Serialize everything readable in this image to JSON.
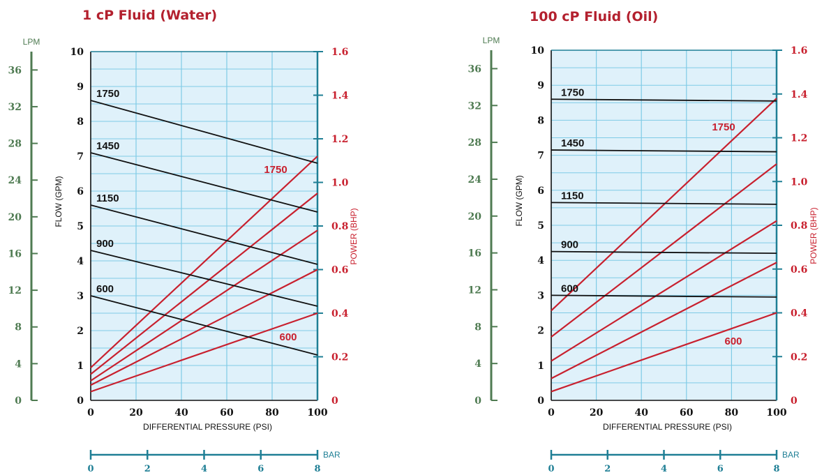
{
  "colors": {
    "flow_line": "#111111",
    "power_line": "#c8202e",
    "lpm_axis": "#4f7b52",
    "bar_axis": "#1f7f95",
    "plot_bg": "#dff1fa",
    "grid": "#7fcbe6",
    "title": "#b3202e"
  },
  "chart_data": [
    {
      "type": "line",
      "title": "1 cP Fluid (Water)",
      "xlabel": "DIFFERENTIAL PRESSURE  (PSI)",
      "ylabel": "FLOW  (GPM)",
      "y2label": "POWER  (BHP)",
      "lpm_label": "LPM",
      "bar_label": "BAR",
      "xlim": [
        0,
        100
      ],
      "ylim": [
        0,
        10
      ],
      "y2lim": [
        0,
        1.6
      ],
      "lpm_lim": [
        0,
        38
      ],
      "bar_lim": [
        0,
        8
      ],
      "x_ticks": [
        "0",
        "20",
        "40",
        "60",
        "80",
        "100"
      ],
      "y_ticks": [
        "0",
        "1",
        "2",
        "3",
        "4",
        "5",
        "6",
        "7",
        "8",
        "9",
        "10"
      ],
      "y2_ticks": [
        "0",
        "0.2",
        "0.4",
        "0.6",
        "0.8",
        "1.0",
        "1.2",
        "1.4",
        "1.6"
      ],
      "lpm_ticks": [
        "0",
        "4",
        "8",
        "12",
        "16",
        "20",
        "24",
        "28",
        "32",
        "36"
      ],
      "bar_ticks": [
        "0",
        "2",
        "4",
        "6",
        "8"
      ],
      "flow_series": [
        {
          "name": "1750",
          "x": [
            0,
            100
          ],
          "y": [
            8.6,
            6.8
          ]
        },
        {
          "name": "1450",
          "x": [
            0,
            100
          ],
          "y": [
            7.1,
            5.4
          ]
        },
        {
          "name": "1150",
          "x": [
            0,
            100
          ],
          "y": [
            5.6,
            3.9
          ]
        },
        {
          "name": "900",
          "x": [
            0,
            100
          ],
          "y": [
            4.3,
            2.7
          ]
        },
        {
          "name": "600",
          "x": [
            0,
            100
          ],
          "y": [
            3.0,
            1.3
          ]
        }
      ],
      "power_series": [
        {
          "rpm": "1750",
          "x": [
            0,
            100
          ],
          "y": [
            0.15,
            1.12
          ]
        },
        {
          "rpm": "1450",
          "x": [
            0,
            100
          ],
          "y": [
            0.12,
            0.95
          ]
        },
        {
          "rpm": "1150",
          "x": [
            0,
            100
          ],
          "y": [
            0.09,
            0.78
          ]
        },
        {
          "rpm": "900",
          "x": [
            0,
            100
          ],
          "y": [
            0.07,
            0.6
          ]
        },
        {
          "rpm": "600",
          "x": [
            0,
            100
          ],
          "y": [
            0.04,
            0.4
          ]
        }
      ],
      "power_labels": [
        "1750",
        "600"
      ]
    },
    {
      "type": "line",
      "title": "100 cP Fluid (Oil)",
      "xlabel": "DIFFERENTIAL PRESSURE  (PSI)",
      "ylabel": "FLOW  (GPM)",
      "y2label": "POWER  (BHP)",
      "lpm_label": "LPM",
      "bar_label": "BAR",
      "xlim": [
        0,
        100
      ],
      "ylim": [
        0,
        10
      ],
      "y2lim": [
        0,
        1.6
      ],
      "lpm_lim": [
        0,
        38
      ],
      "bar_lim": [
        0,
        8
      ],
      "x_ticks": [
        "0",
        "20",
        "40",
        "60",
        "80",
        "100"
      ],
      "y_ticks": [
        "0",
        "1",
        "2",
        "3",
        "4",
        "5",
        "6",
        "7",
        "8",
        "9",
        "10"
      ],
      "y2_ticks": [
        "0",
        "0.2",
        "0.4",
        "0.6",
        "0.8",
        "1.0",
        "1.2",
        "1.4",
        "1.6"
      ],
      "lpm_ticks": [
        "0",
        "4",
        "8",
        "12",
        "16",
        "20",
        "24",
        "28",
        "32",
        "36"
      ],
      "bar_ticks": [
        "0",
        "2",
        "4",
        "6",
        "8"
      ],
      "flow_series": [
        {
          "name": "1750",
          "x": [
            0,
            100
          ],
          "y": [
            8.6,
            8.55
          ]
        },
        {
          "name": "1450",
          "x": [
            0,
            100
          ],
          "y": [
            7.15,
            7.1
          ]
        },
        {
          "name": "1150",
          "x": [
            0,
            100
          ],
          "y": [
            5.65,
            5.6
          ]
        },
        {
          "name": "900",
          "x": [
            0,
            100
          ],
          "y": [
            4.25,
            4.2
          ]
        },
        {
          "name": "600",
          "x": [
            0,
            100
          ],
          "y": [
            3.0,
            2.95
          ]
        }
      ],
      "power_series": [
        {
          "rpm": "1750",
          "x": [
            0,
            100
          ],
          "y": [
            0.41,
            1.38
          ]
        },
        {
          "rpm": "1450",
          "x": [
            0,
            100
          ],
          "y": [
            0.29,
            1.08
          ]
        },
        {
          "rpm": "1150",
          "x": [
            0,
            100
          ],
          "y": [
            0.18,
            0.82
          ]
        },
        {
          "rpm": "900",
          "x": [
            0,
            100
          ],
          "y": [
            0.1,
            0.63
          ]
        },
        {
          "rpm": "600",
          "x": [
            0,
            100
          ],
          "y": [
            0.04,
            0.4
          ]
        }
      ],
      "power_labels": [
        "1750",
        "600"
      ]
    }
  ]
}
